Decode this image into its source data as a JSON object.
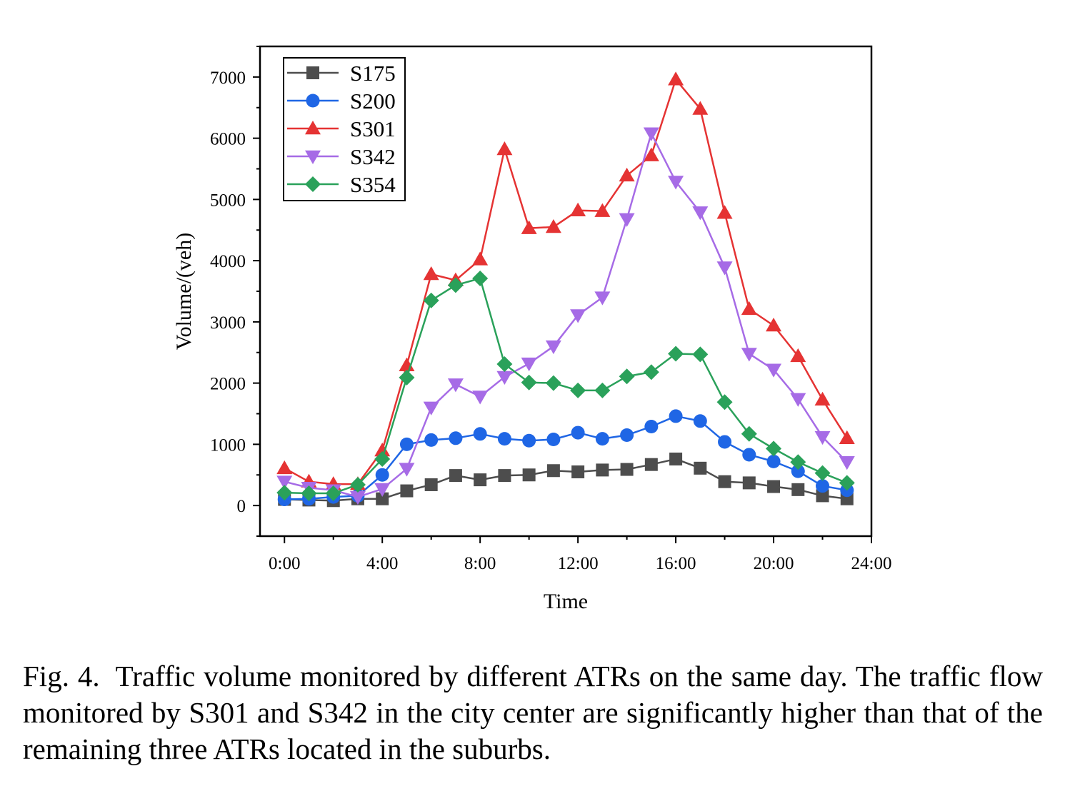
{
  "chart_data": {
    "type": "line",
    "xlabel": "Time",
    "ylabel": "Volume/(veh)",
    "xlim": [
      -1,
      24
    ],
    "ylim": [
      -500,
      7500
    ],
    "x_ticks": [
      0,
      4,
      8,
      12,
      16,
      20,
      24
    ],
    "x_tick_labels": [
      "0:00",
      "4:00",
      "8:00",
      "12:00",
      "16:00",
      "20:00",
      "24:00"
    ],
    "y_ticks": [
      0,
      1000,
      2000,
      3000,
      4000,
      5000,
      6000,
      7000
    ],
    "y_tick_labels": [
      "0",
      "1000",
      "2000",
      "3000",
      "4000",
      "5000",
      "6000",
      "7000"
    ],
    "grid": false,
    "legend_position": "top-left",
    "x": [
      0,
      1,
      2,
      3,
      4,
      5,
      6,
      7,
      8,
      9,
      10,
      11,
      12,
      13,
      14,
      15,
      16,
      17,
      18,
      19,
      20,
      21,
      22,
      23
    ],
    "series": [
      {
        "name": "S175",
        "color": "#4d4d4d",
        "marker": "square",
        "values": [
          100,
          90,
          80,
          110,
          110,
          240,
          340,
          490,
          420,
          490,
          500,
          570,
          550,
          580,
          590,
          670,
          760,
          610,
          390,
          370,
          310,
          260,
          160,
          110
        ]
      },
      {
        "name": "S200",
        "color": "#1f66e5",
        "marker": "circle",
        "values": [
          100,
          110,
          140,
          160,
          500,
          1000,
          1070,
          1100,
          1170,
          1090,
          1060,
          1080,
          1190,
          1090,
          1150,
          1290,
          1460,
          1380,
          1040,
          830,
          720,
          560,
          320,
          250
        ]
      },
      {
        "name": "S301",
        "color": "#e53333",
        "marker": "triangle-up",
        "values": [
          610,
          390,
          350,
          350,
          900,
          2290,
          3780,
          3680,
          4020,
          5820,
          4530,
          4550,
          4820,
          4810,
          5390,
          5720,
          6960,
          6480,
          4780,
          3210,
          2940,
          2440,
          1730,
          1100
        ]
      },
      {
        "name": "S342",
        "color": "#a66be6",
        "marker": "triangle-down",
        "values": [
          390,
          290,
          250,
          140,
          270,
          600,
          1600,
          1980,
          1780,
          2100,
          2320,
          2600,
          3110,
          3400,
          4680,
          6080,
          5290,
          4790,
          3890,
          2480,
          2220,
          1740,
          1120,
          710
        ]
      },
      {
        "name": "S354",
        "color": "#2aa15a",
        "marker": "diamond",
        "values": [
          210,
          200,
          200,
          340,
          760,
          2090,
          3350,
          3600,
          3710,
          2310,
          2010,
          2000,
          1880,
          1880,
          2110,
          2180,
          2480,
          2470,
          1690,
          1170,
          930,
          710,
          530,
          370
        ]
      }
    ]
  },
  "caption": {
    "label": "Fig. 4.",
    "text": "Traffic volume monitored by different ATRs on the same day. The traffic flow monitored by S301 and S342 in the city center are significantly higher than that of the remaining three ATRs located in the suburbs."
  }
}
